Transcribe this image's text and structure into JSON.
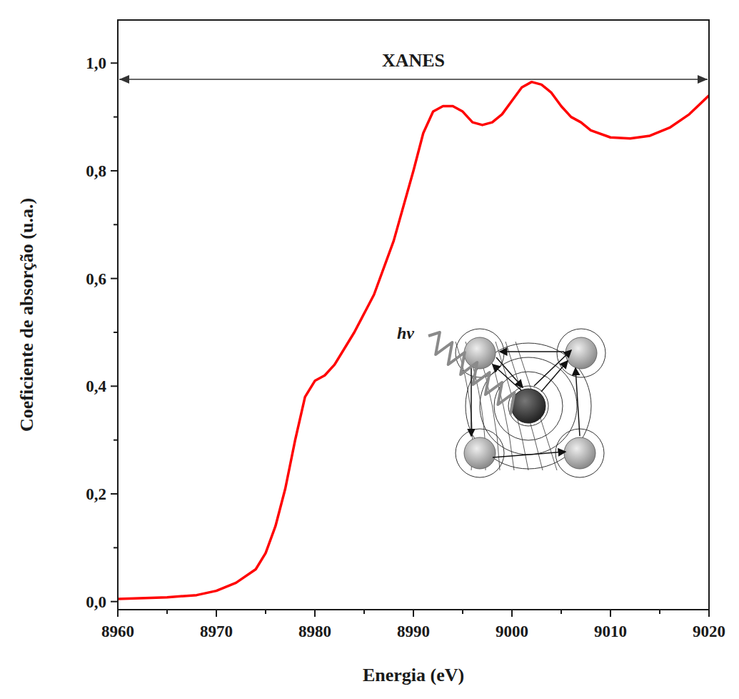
{
  "chart_data": {
    "type": "line",
    "x_label": "Energia (eV)",
    "y_label": "Coeficiente de absorção (u.a.)",
    "xlim": [
      8960,
      9020
    ],
    "xticks": [
      8960,
      8970,
      8980,
      8990,
      9000,
      9010,
      9020
    ],
    "ylim": [
      -0.015,
      1.08
    ],
    "yticks": [
      {
        "value": 0,
        "label": "0,0"
      },
      {
        "value": 0.2,
        "label": "0,2"
      },
      {
        "value": 0.4,
        "label": "0,4"
      },
      {
        "value": 0.6,
        "label": "0,6"
      },
      {
        "value": 0.8,
        "label": "0,8"
      },
      {
        "value": 1.0,
        "label": "1,0"
      }
    ],
    "grid": false,
    "series": [
      {
        "color": "#ff0000",
        "x": [
          8960,
          8965,
          8968,
          8970,
          8972,
          8974,
          8975,
          8976,
          8977,
          8978,
          8979,
          8980,
          8981,
          8982,
          8984,
          8986,
          8988,
          8990,
          8991,
          8992,
          8993,
          8994,
          8995,
          8996,
          8997,
          8998,
          8999,
          9000,
          9001,
          9002,
          9003,
          9004,
          9005,
          9006,
          9007,
          9008,
          9010,
          9012,
          9014,
          9016,
          9018,
          9020
        ],
        "values": [
          0.005,
          0.008,
          0.012,
          0.02,
          0.035,
          0.06,
          0.09,
          0.14,
          0.21,
          0.3,
          0.38,
          0.41,
          0.42,
          0.44,
          0.5,
          0.57,
          0.67,
          0.8,
          0.87,
          0.91,
          0.92,
          0.92,
          0.91,
          0.89,
          0.885,
          0.89,
          0.905,
          0.93,
          0.955,
          0.965,
          0.96,
          0.945,
          0.92,
          0.9,
          0.89,
          0.875,
          0.862,
          0.86,
          0.865,
          0.88,
          0.905,
          0.94
        ]
      }
    ],
    "annotations": [
      {
        "text": "XANES",
        "x": [
          8960,
          9020
        ],
        "y": 0.97
      },
      {
        "text": "hν"
      }
    ]
  }
}
